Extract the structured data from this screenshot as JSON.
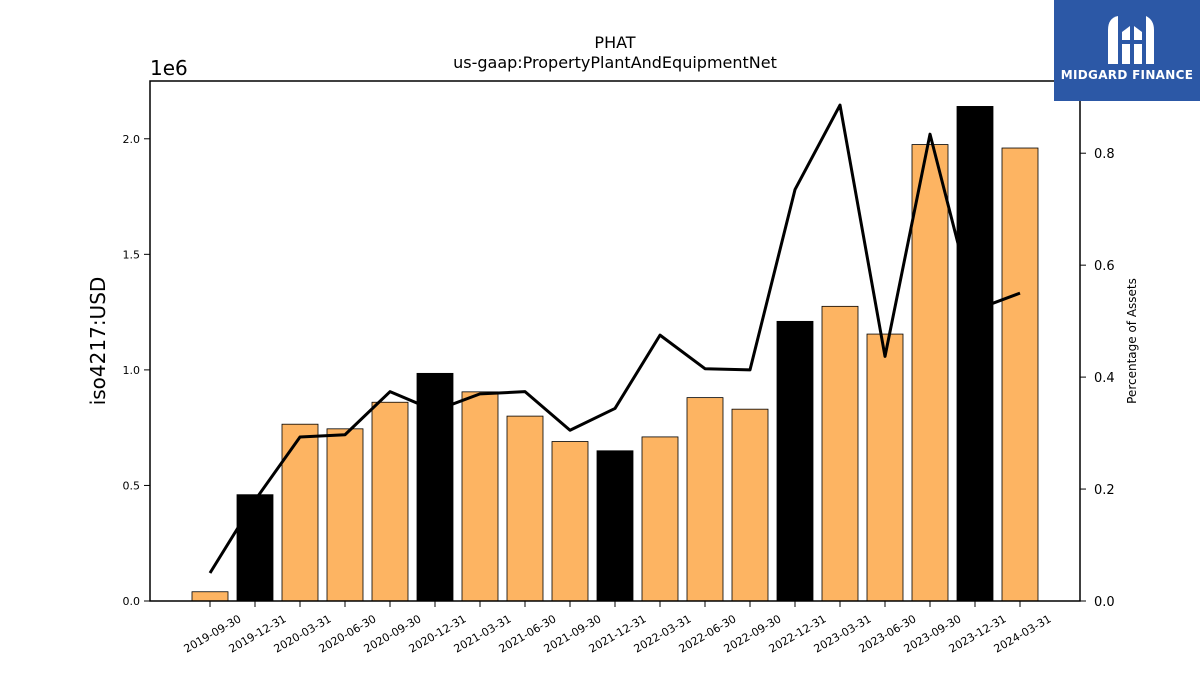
{
  "logo": {
    "text": "MIDGARD FINANCE"
  },
  "chart_data": {
    "type": "bar",
    "title": "PHAT",
    "subtitle": "us-gaap:PropertyPlantAndEquipmentNet",
    "ylabel": "iso4217:USD",
    "ylabel_right": "Percentage of Assets",
    "offset_label": "1e6",
    "ylim": [
      0,
      2.25
    ],
    "ylim_right": [
      0,
      0.929
    ],
    "y_ticks": [
      "0.0",
      "0.5",
      "1.0",
      "1.5",
      "2.0"
    ],
    "y_tick_values": [
      0,
      0.5,
      1.0,
      1.5,
      2.0
    ],
    "y_ticks_right": [
      "0.0",
      "0.2",
      "0.4",
      "0.6",
      "0.8"
    ],
    "y_tick_values_right": [
      0,
      0.2,
      0.4,
      0.6,
      0.8
    ],
    "categories": [
      "2019-09-30",
      "2019-12-31",
      "2020-03-31",
      "2020-06-30",
      "2020-09-30",
      "2020-12-31",
      "2021-03-31",
      "2021-06-30",
      "2021-09-30",
      "2021-12-31",
      "2022-03-31",
      "2022-06-30",
      "2022-09-30",
      "2022-12-31",
      "2023-03-31",
      "2023-06-30",
      "2023-09-30",
      "2023-12-31",
      "2024-03-31"
    ],
    "series": [
      {
        "type": "bar",
        "values": [
          0.04,
          0.46,
          0.765,
          0.745,
          0.86,
          0.985,
          0.905,
          0.8,
          0.69,
          0.65,
          0.71,
          0.88,
          0.83,
          1.21,
          1.275,
          1.155,
          1.975,
          2.14,
          1.96
        ],
        "annual_color": "#000000",
        "quarter_color": "#fdb462"
      },
      {
        "type": "line",
        "axis": "right",
        "values": [
          0.05,
          0.18,
          0.293,
          0.297,
          0.374,
          0.34,
          0.37,
          0.374,
          0.305,
          0.344,
          0.475,
          0.415,
          0.413,
          0.735,
          0.886,
          0.437,
          0.834,
          0.52,
          0.55
        ],
        "color": "#000000"
      }
    ],
    "grid": false
  }
}
